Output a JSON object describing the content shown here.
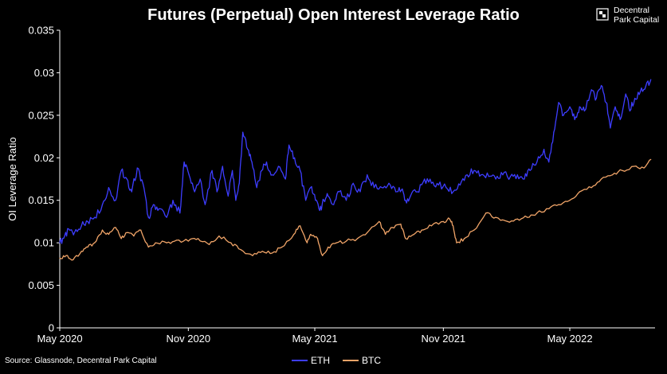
{
  "brand": {
    "line1": "Decentral",
    "line2": "Park Capital"
  },
  "source": "Source: Glassnode, Decentral Park Capital",
  "colors": {
    "background": "#000000",
    "eth": "#3d3dff",
    "btc": "#f0a468",
    "text": "#ffffff"
  },
  "chart_data": {
    "type": "line",
    "title": "Futures (Perpetual) Open Interest Leverage Ratio",
    "xlabel": "",
    "ylabel": "OI Leverage Ratio",
    "xlim": [
      "2020-05-01",
      "2022-08-31"
    ],
    "ylim": [
      0,
      0.035
    ],
    "yticks": [
      "0",
      "0.005",
      "0.01",
      "0.015",
      "0.02",
      "0.025",
      "0.03",
      "0.035"
    ],
    "xticks": [
      "May 2020",
      "Nov 2020",
      "May 2021",
      "Nov 2021",
      "May 2022"
    ],
    "grid": false,
    "legend": "bottom-center",
    "series": [
      {
        "name": "ETH",
        "color": "#3d3dff",
        "points": [
          [
            "2020-05-01",
            0.01
          ],
          [
            "2020-05-08",
            0.0108
          ],
          [
            "2020-05-15",
            0.0115
          ],
          [
            "2020-05-22",
            0.0112
          ],
          [
            "2020-06-01",
            0.012
          ],
          [
            "2020-06-10",
            0.0125
          ],
          [
            "2020-06-20",
            0.013
          ],
          [
            "2020-07-01",
            0.0145
          ],
          [
            "2020-07-10",
            0.0165
          ],
          [
            "2020-07-20",
            0.015
          ],
          [
            "2020-07-28",
            0.0185
          ],
          [
            "2020-08-05",
            0.0175
          ],
          [
            "2020-08-12",
            0.016
          ],
          [
            "2020-08-20",
            0.0188
          ],
          [
            "2020-08-28",
            0.017
          ],
          [
            "2020-09-05",
            0.013
          ],
          [
            "2020-09-12",
            0.0145
          ],
          [
            "2020-09-20",
            0.014
          ],
          [
            "2020-10-01",
            0.013
          ],
          [
            "2020-10-10",
            0.015
          ],
          [
            "2020-10-20",
            0.0135
          ],
          [
            "2020-10-26",
            0.0195
          ],
          [
            "2020-11-02",
            0.018
          ],
          [
            "2020-11-10",
            0.016
          ],
          [
            "2020-11-18",
            0.0175
          ],
          [
            "2020-11-25",
            0.0145
          ],
          [
            "2020-12-05",
            0.0185
          ],
          [
            "2020-12-12",
            0.016
          ],
          [
            "2020-12-20",
            0.019
          ],
          [
            "2020-12-28",
            0.0155
          ],
          [
            "2021-01-03",
            0.0185
          ],
          [
            "2021-01-08",
            0.015
          ],
          [
            "2021-01-13",
            0.017
          ],
          [
            "2021-01-18",
            0.023
          ],
          [
            "2021-01-25",
            0.021
          ],
          [
            "2021-01-31",
            0.0195
          ],
          [
            "2021-02-07",
            0.0165
          ],
          [
            "2021-02-14",
            0.0185
          ],
          [
            "2021-02-21",
            0.0195
          ],
          [
            "2021-03-01",
            0.018
          ],
          [
            "2021-03-10",
            0.019
          ],
          [
            "2021-03-20",
            0.0175
          ],
          [
            "2021-03-25",
            0.0215
          ],
          [
            "2021-04-02",
            0.02
          ],
          [
            "2021-04-10",
            0.0185
          ],
          [
            "2021-04-18",
            0.015
          ],
          [
            "2021-04-25",
            0.0165
          ],
          [
            "2021-05-02",
            0.015
          ],
          [
            "2021-05-08",
            0.0138
          ],
          [
            "2021-05-14",
            0.015
          ],
          [
            "2021-05-20",
            0.0155
          ],
          [
            "2021-05-28",
            0.0145
          ],
          [
            "2021-06-05",
            0.016
          ],
          [
            "2021-06-15",
            0.015
          ],
          [
            "2021-06-25",
            0.017
          ],
          [
            "2021-07-05",
            0.016
          ],
          [
            "2021-07-15",
            0.018
          ],
          [
            "2021-07-25",
            0.0165
          ],
          [
            "2021-08-05",
            0.0165
          ],
          [
            "2021-08-15",
            0.017
          ],
          [
            "2021-08-25",
            0.016
          ],
          [
            "2021-09-02",
            0.0162
          ],
          [
            "2021-09-08",
            0.015
          ],
          [
            "2021-09-15",
            0.0155
          ],
          [
            "2021-09-25",
            0.016
          ],
          [
            "2021-10-05",
            0.0175
          ],
          [
            "2021-10-15",
            0.017
          ],
          [
            "2021-10-25",
            0.0168
          ],
          [
            "2021-11-05",
            0.0165
          ],
          [
            "2021-11-15",
            0.016
          ],
          [
            "2021-11-25",
            0.0168
          ],
          [
            "2021-12-05",
            0.018
          ],
          [
            "2021-12-15",
            0.0185
          ],
          [
            "2021-12-25",
            0.018
          ],
          [
            "2022-01-05",
            0.0178
          ],
          [
            "2022-01-15",
            0.0175
          ],
          [
            "2022-01-25",
            0.018
          ],
          [
            "2022-02-05",
            0.0178
          ],
          [
            "2022-02-15",
            0.018
          ],
          [
            "2022-02-25",
            0.0175
          ],
          [
            "2022-03-05",
            0.0185
          ],
          [
            "2022-03-15",
            0.0195
          ],
          [
            "2022-03-25",
            0.021
          ],
          [
            "2022-04-01",
            0.0195
          ],
          [
            "2022-04-08",
            0.023
          ],
          [
            "2022-04-15",
            0.0265
          ],
          [
            "2022-04-22",
            0.025
          ],
          [
            "2022-05-01",
            0.026
          ],
          [
            "2022-05-08",
            0.0245
          ],
          [
            "2022-05-15",
            0.026
          ],
          [
            "2022-05-22",
            0.0255
          ],
          [
            "2022-06-01",
            0.028
          ],
          [
            "2022-06-08",
            0.027
          ],
          [
            "2022-06-15",
            0.0285
          ],
          [
            "2022-06-22",
            0.0265
          ],
          [
            "2022-06-28",
            0.0235
          ],
          [
            "2022-07-05",
            0.026
          ],
          [
            "2022-07-12",
            0.0245
          ],
          [
            "2022-07-20",
            0.0275
          ],
          [
            "2022-07-26",
            0.0255
          ],
          [
            "2022-08-02",
            0.027
          ],
          [
            "2022-08-10",
            0.0278
          ],
          [
            "2022-08-18",
            0.0285
          ],
          [
            "2022-08-25",
            0.0292
          ]
        ]
      },
      {
        "name": "BTC",
        "color": "#f0a468",
        "points": [
          [
            "2020-05-01",
            0.0082
          ],
          [
            "2020-05-10",
            0.0085
          ],
          [
            "2020-05-20",
            0.008
          ],
          [
            "2020-06-01",
            0.009
          ],
          [
            "2020-06-10",
            0.0095
          ],
          [
            "2020-06-20",
            0.01
          ],
          [
            "2020-07-01",
            0.0115
          ],
          [
            "2020-07-10",
            0.011
          ],
          [
            "2020-07-20",
            0.0118
          ],
          [
            "2020-07-28",
            0.0105
          ],
          [
            "2020-08-05",
            0.0112
          ],
          [
            "2020-08-15",
            0.0108
          ],
          [
            "2020-08-25",
            0.0115
          ],
          [
            "2020-09-05",
            0.0095
          ],
          [
            "2020-09-15",
            0.01
          ],
          [
            "2020-10-01",
            0.01
          ],
          [
            "2020-10-15",
            0.0103
          ],
          [
            "2020-11-01",
            0.0102
          ],
          [
            "2020-11-15",
            0.0105
          ],
          [
            "2020-12-01",
            0.0098
          ],
          [
            "2020-12-15",
            0.0108
          ],
          [
            "2021-01-01",
            0.01
          ],
          [
            "2021-01-15",
            0.0092
          ],
          [
            "2021-02-01",
            0.0085
          ],
          [
            "2021-02-15",
            0.009
          ],
          [
            "2021-03-01",
            0.0088
          ],
          [
            "2021-03-15",
            0.0095
          ],
          [
            "2021-04-01",
            0.011
          ],
          [
            "2021-04-10",
            0.012
          ],
          [
            "2021-04-20",
            0.01
          ],
          [
            "2021-04-25",
            0.011
          ],
          [
            "2021-05-05",
            0.0105
          ],
          [
            "2021-05-12",
            0.0085
          ],
          [
            "2021-05-20",
            0.0095
          ],
          [
            "2021-06-01",
            0.01
          ],
          [
            "2021-06-15",
            0.0102
          ],
          [
            "2021-07-01",
            0.0105
          ],
          [
            "2021-07-15",
            0.0112
          ],
          [
            "2021-08-01",
            0.0125
          ],
          [
            "2021-08-10",
            0.011
          ],
          [
            "2021-08-20",
            0.0118
          ],
          [
            "2021-09-01",
            0.0122
          ],
          [
            "2021-09-08",
            0.0105
          ],
          [
            "2021-09-20",
            0.011
          ],
          [
            "2021-10-01",
            0.0115
          ],
          [
            "2021-10-15",
            0.012
          ],
          [
            "2021-11-01",
            0.0125
          ],
          [
            "2021-11-10",
            0.0128
          ],
          [
            "2021-11-15",
            0.012
          ],
          [
            "2021-11-20",
            0.01
          ],
          [
            "2021-12-01",
            0.0105
          ],
          [
            "2021-12-15",
            0.0115
          ],
          [
            "2022-01-01",
            0.0135
          ],
          [
            "2022-01-15",
            0.013
          ],
          [
            "2022-02-01",
            0.0125
          ],
          [
            "2022-02-15",
            0.0128
          ],
          [
            "2022-03-01",
            0.013
          ],
          [
            "2022-03-15",
            0.0135
          ],
          [
            "2022-04-01",
            0.014
          ],
          [
            "2022-04-15",
            0.0145
          ],
          [
            "2022-05-01",
            0.015
          ],
          [
            "2022-05-15",
            0.016
          ],
          [
            "2022-06-01",
            0.0165
          ],
          [
            "2022-06-15",
            0.0175
          ],
          [
            "2022-07-01",
            0.018
          ],
          [
            "2022-07-15",
            0.0185
          ],
          [
            "2022-08-01",
            0.019
          ],
          [
            "2022-08-15",
            0.0188
          ],
          [
            "2022-08-25",
            0.0198
          ]
        ]
      }
    ]
  }
}
